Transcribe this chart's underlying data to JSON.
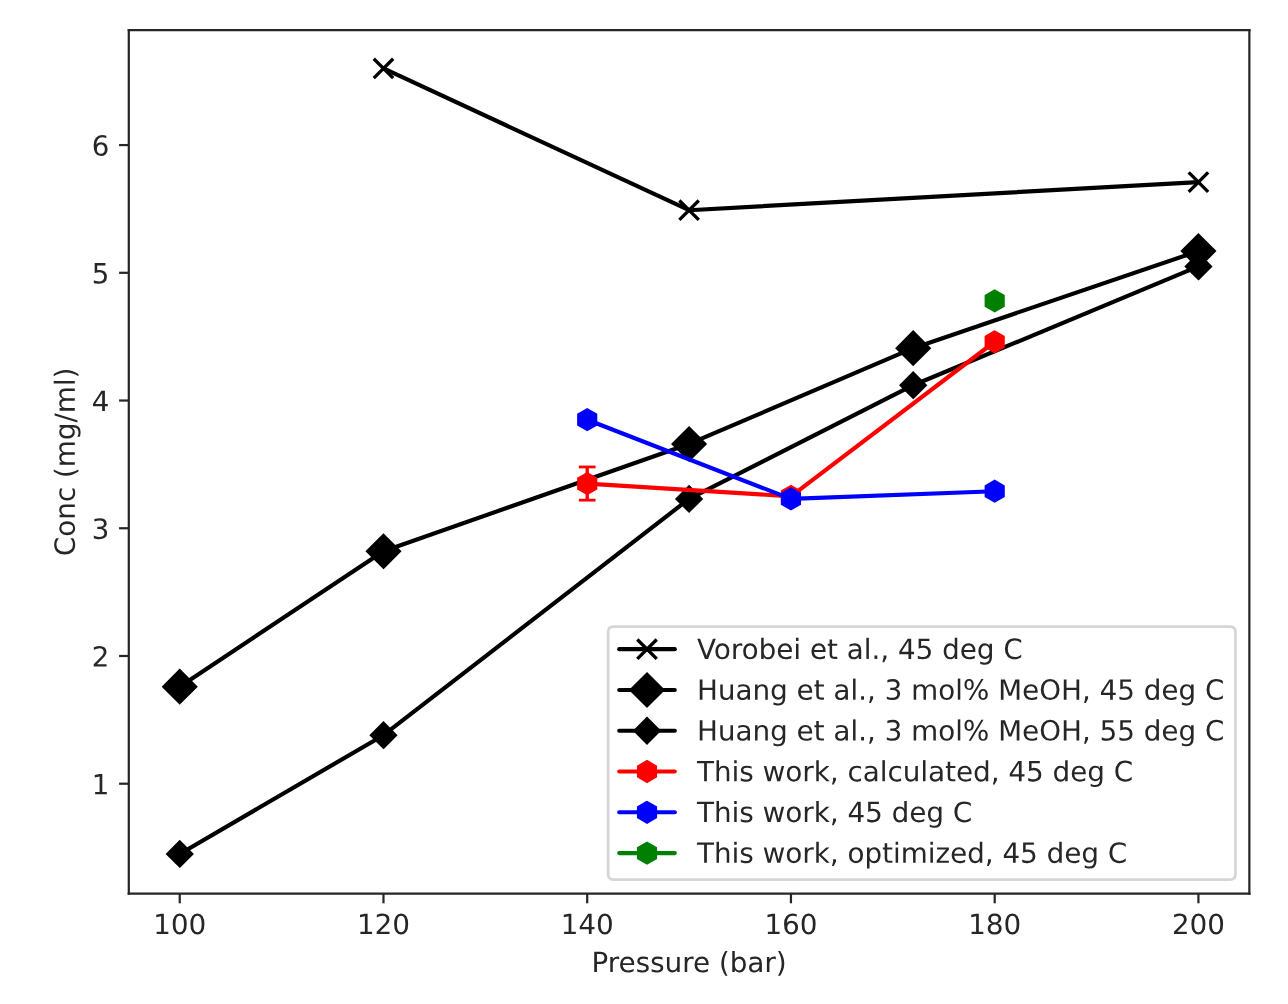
{
  "chart_data": {
    "type": "line",
    "xlabel": "Pressure (bar)",
    "ylabel": "Conc (mg/ml)",
    "xlim": [
      95,
      205
    ],
    "xticks": [
      100,
      120,
      140,
      160,
      180,
      200
    ],
    "ylim": [
      0.14,
      6.9
    ],
    "yticks": [
      1,
      2,
      3,
      4,
      5,
      6
    ],
    "grid": false,
    "legend": "bottom right",
    "series": [
      {
        "name": "Vorobei et al., 45 deg C",
        "color": "#000000",
        "marker": "cross",
        "x": [
          120,
          150,
          200
        ],
        "values": [
          6.6,
          5.49,
          5.71
        ]
      },
      {
        "name": "Huang et al., 3 mol% MeOH, 45 deg C",
        "color": "#000000",
        "marker": "diamond",
        "x": [
          100,
          120,
          150,
          172,
          200
        ],
        "values": [
          1.76,
          2.82,
          3.66,
          4.41,
          5.17
        ]
      },
      {
        "name": "Huang et al., 3 mol% MeOH, 55 deg C",
        "color": "#000000",
        "marker": "diamond",
        "x": [
          100,
          120,
          150,
          172,
          200
        ],
        "values": [
          0.45,
          1.38,
          3.23,
          4.12,
          5.05
        ]
      },
      {
        "name": "This work, calculated, 45 deg C",
        "color": "#ff0000",
        "marker": "circle",
        "x": [
          140,
          160,
          180
        ],
        "values": [
          3.35,
          3.25,
          4.46
        ],
        "errors": [
          0.13,
          null,
          null
        ]
      },
      {
        "name": "This work, 45 deg C",
        "color": "#0000ff",
        "marker": "circle",
        "x": [
          140,
          160,
          180
        ],
        "values": [
          3.85,
          3.23,
          3.29
        ]
      },
      {
        "name": "This work, optimized, 45 deg C",
        "color": "#008000",
        "marker": "circle",
        "x": [
          180
        ],
        "values": [
          4.78
        ]
      }
    ]
  }
}
